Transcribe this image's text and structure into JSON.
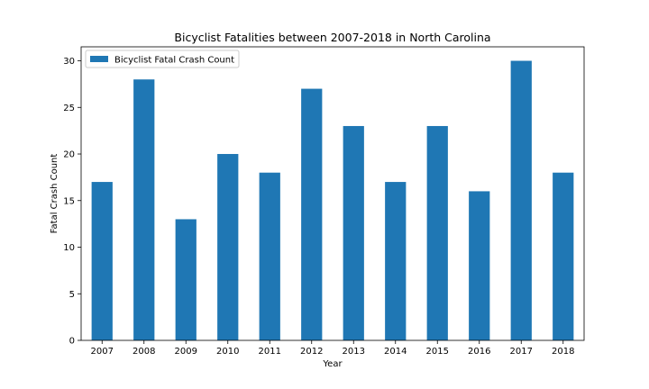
{
  "chart_data": {
    "type": "bar",
    "title": "Bicyclist Fatalities between 2007-2018 in North Carolina",
    "xlabel": "Year",
    "ylabel": "Fatal Crash Count",
    "categories": [
      "2007",
      "2008",
      "2009",
      "2010",
      "2011",
      "2012",
      "2013",
      "2014",
      "2015",
      "2016",
      "2017",
      "2018"
    ],
    "series": [
      {
        "name": "Bicyclist Fatal Crash Count",
        "values": [
          17,
          28,
          13,
          20,
          18,
          27,
          23,
          17,
          23,
          16,
          30,
          18
        ]
      }
    ],
    "ylim": [
      0,
      31.5
    ],
    "yticks": [
      0,
      5,
      10,
      15,
      20,
      25,
      30
    ],
    "grid": false,
    "legend": "top-left",
    "colors": {
      "bar": "#1f77b4"
    }
  }
}
